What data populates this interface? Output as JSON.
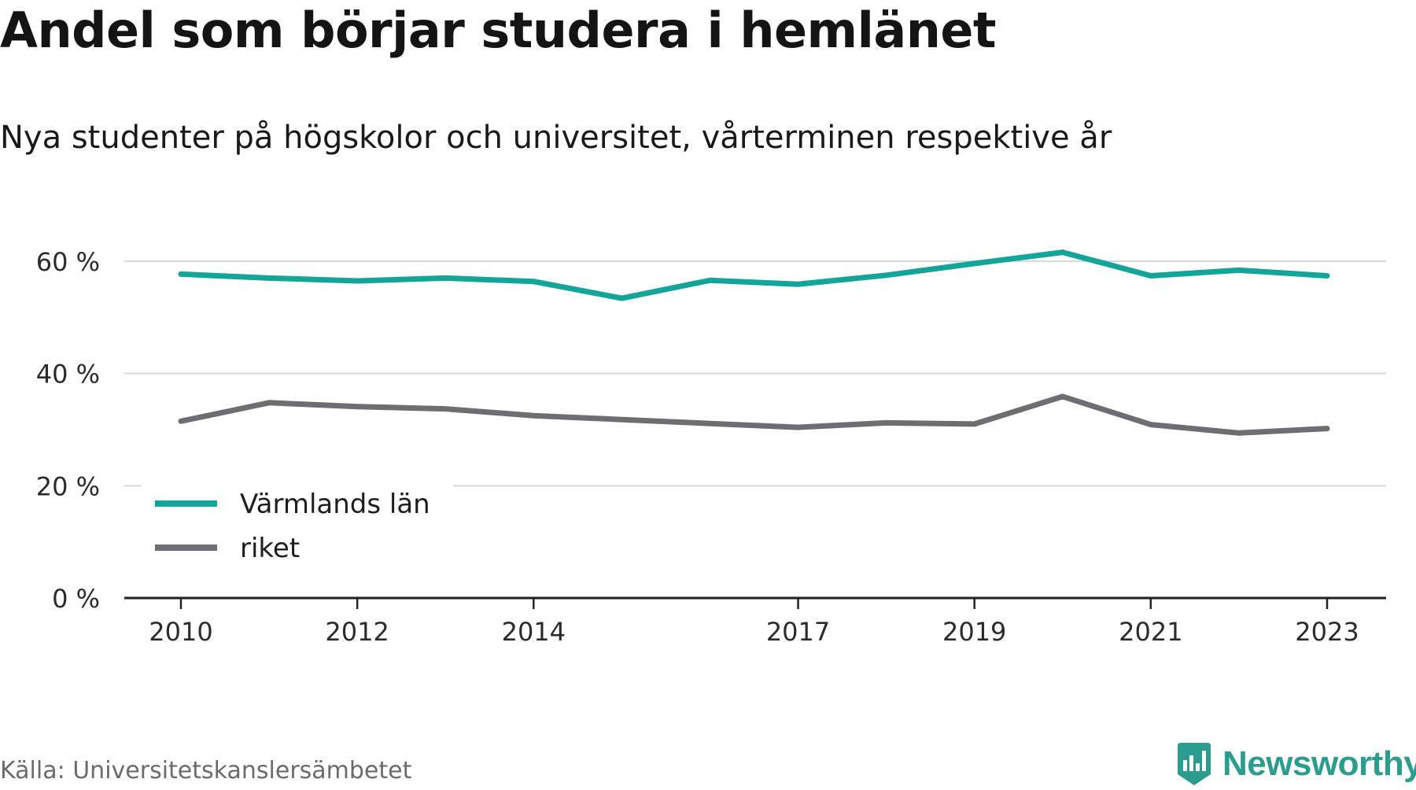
{
  "title": "Andel som börjar studera i hemlänet",
  "subtitle": "Nya studenter på högskolor och universitet, vårterminen respektive år",
  "source": "Källa: Universitetskanslersämbetet",
  "brand": {
    "name": "Newsworthy",
    "icon": "newsworthy-logo-icon"
  },
  "colors": {
    "teal": "#13a59a",
    "gray": "#6e6d72",
    "grid": "#d9d9d9",
    "axis": "#222222",
    "brand": "#2a9d8f"
  },
  "chart_data": {
    "type": "line",
    "x": [
      2010,
      2011,
      2012,
      2013,
      2014,
      2015,
      2016,
      2017,
      2018,
      2019,
      2020,
      2021,
      2022,
      2023
    ],
    "x_tick_labels": [
      "2010",
      "2012",
      "2014",
      "2017",
      "2019",
      "2021",
      "2023"
    ],
    "x_tick_values": [
      2010,
      2012,
      2014,
      2017,
      2019,
      2021,
      2023
    ],
    "y_tick_labels": [
      "0 %",
      "20 %",
      "40 %",
      "60 %"
    ],
    "y_tick_values": [
      0,
      20,
      40,
      60
    ],
    "ylim": [
      0,
      60
    ],
    "grid": true,
    "legend_position": "bottom-left",
    "series": [
      {
        "name": "Värmlands län",
        "color": "#13a59a",
        "values": [
          57.7,
          57.0,
          56.5,
          57.0,
          56.4,
          53.4,
          56.6,
          55.9,
          57.5,
          59.6,
          61.6,
          57.4,
          58.4,
          57.4
        ]
      },
      {
        "name": "riket",
        "color": "#6e6d72",
        "values": [
          31.5,
          34.8,
          34.1,
          33.7,
          32.5,
          31.8,
          31.1,
          30.4,
          31.2,
          31.0,
          35.9,
          30.9,
          29.4,
          30.2
        ]
      }
    ]
  }
}
